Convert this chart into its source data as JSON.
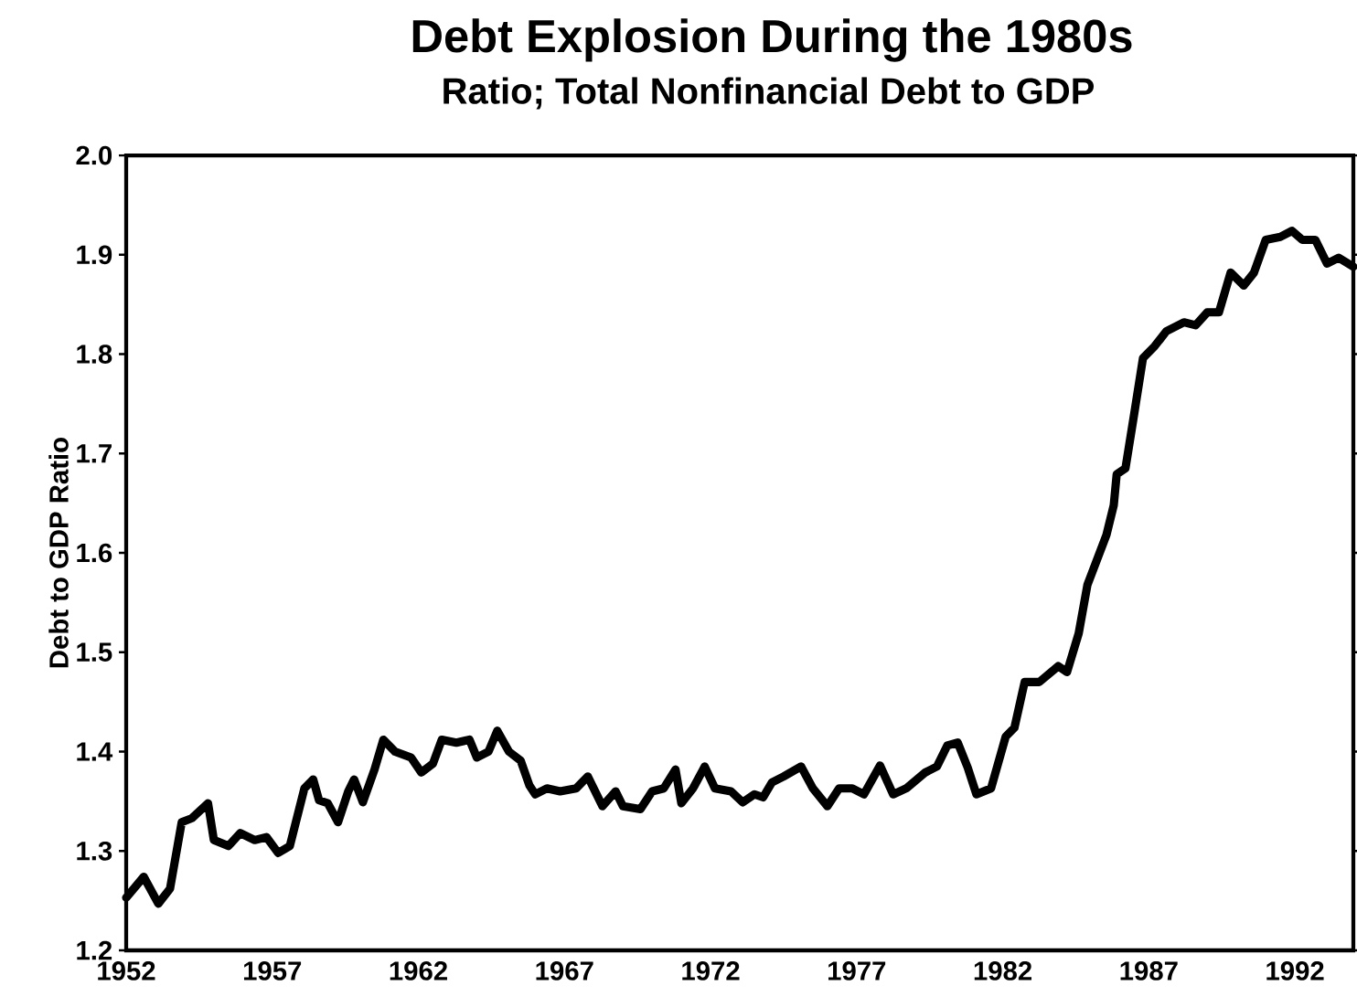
{
  "chart_data": {
    "type": "line",
    "title": "Debt Explosion During the 1980s",
    "subtitle": "Ratio; Total Nonfinancial Debt to GDP",
    "ylabel": "Debt to GDP Ratio",
    "x": [
      1952.0,
      1952.6,
      1953.1,
      1953.5,
      1953.9,
      1954.25,
      1954.8,
      1955.0,
      1955.5,
      1955.9,
      1956.4,
      1956.8,
      1957.2,
      1957.6,
      1958.1,
      1958.4,
      1958.6,
      1958.9,
      1959.25,
      1959.6,
      1959.8,
      1960.1,
      1960.5,
      1960.8,
      1961.2,
      1961.75,
      1962.1,
      1962.5,
      1962.8,
      1963.3,
      1963.75,
      1964.0,
      1964.4,
      1964.7,
      1965.1,
      1965.5,
      1965.8,
      1966.0,
      1966.4,
      1966.85,
      1967.4,
      1967.8,
      1968.3,
      1968.75,
      1969.0,
      1969.6,
      1970.0,
      1970.4,
      1970.8,
      1971.0,
      1971.4,
      1971.8,
      1972.15,
      1972.7,
      1973.1,
      1973.5,
      1973.8,
      1974.1,
      1974.5,
      1975.1,
      1975.5,
      1976.0,
      1976.4,
      1976.85,
      1977.25,
      1977.8,
      1978.25,
      1978.7,
      1979.35,
      1979.75,
      1980.1,
      1980.46,
      1980.8,
      1981.1,
      1981.6,
      1982.1,
      1982.4,
      1982.75,
      1983.25,
      1983.9,
      1984.2,
      1984.6,
      1984.9,
      1985.55,
      1985.8,
      1985.9,
      1986.2,
      1986.5,
      1986.8,
      1987.2,
      1987.6,
      1988.2,
      1988.6,
      1989.0,
      1989.4,
      1989.8,
      1990.25,
      1990.6,
      1991.0,
      1991.5,
      1991.9,
      1992.25,
      1992.7,
      1993.1,
      1993.5,
      1994.0
    ],
    "values": [
      1.253,
      1.274,
      1.247,
      1.262,
      1.329,
      1.333,
      1.348,
      1.311,
      1.305,
      1.318,
      1.311,
      1.314,
      1.298,
      1.305,
      1.363,
      1.372,
      1.351,
      1.348,
      1.329,
      1.36,
      1.372,
      1.349,
      1.382,
      1.412,
      1.4,
      1.394,
      1.379,
      1.388,
      1.412,
      1.409,
      1.412,
      1.394,
      1.4,
      1.421,
      1.4,
      1.391,
      1.366,
      1.357,
      1.363,
      1.36,
      1.363,
      1.375,
      1.345,
      1.36,
      1.345,
      1.342,
      1.36,
      1.363,
      1.382,
      1.348,
      1.363,
      1.385,
      1.363,
      1.36,
      1.349,
      1.357,
      1.354,
      1.369,
      1.375,
      1.385,
      1.363,
      1.345,
      1.363,
      1.363,
      1.357,
      1.386,
      1.357,
      1.363,
      1.379,
      1.385,
      1.406,
      1.409,
      1.384,
      1.357,
      1.363,
      1.415,
      1.424,
      1.47,
      1.47,
      1.486,
      1.48,
      1.519,
      1.568,
      1.618,
      1.648,
      1.679,
      1.685,
      1.74,
      1.796,
      1.808,
      1.823,
      1.832,
      1.829,
      1.842,
      1.842,
      1.882,
      1.869,
      1.882,
      1.915,
      1.918,
      1.924,
      1.915,
      1.915,
      1.891,
      1.897,
      1.888
    ],
    "color": "#000000",
    "line_style": "solid",
    "xlim": [
      1952,
      1994
    ],
    "ylim": [
      1.2,
      2.0
    ],
    "xticks": [
      1952,
      1957,
      1962,
      1967,
      1972,
      1977,
      1982,
      1987,
      1992
    ],
    "yticks": [
      1.2,
      1.3,
      1.4,
      1.5,
      1.6,
      1.7,
      1.8,
      1.9,
      {
        "value": 2.0,
        "label": "2.0"
      }
    ]
  }
}
